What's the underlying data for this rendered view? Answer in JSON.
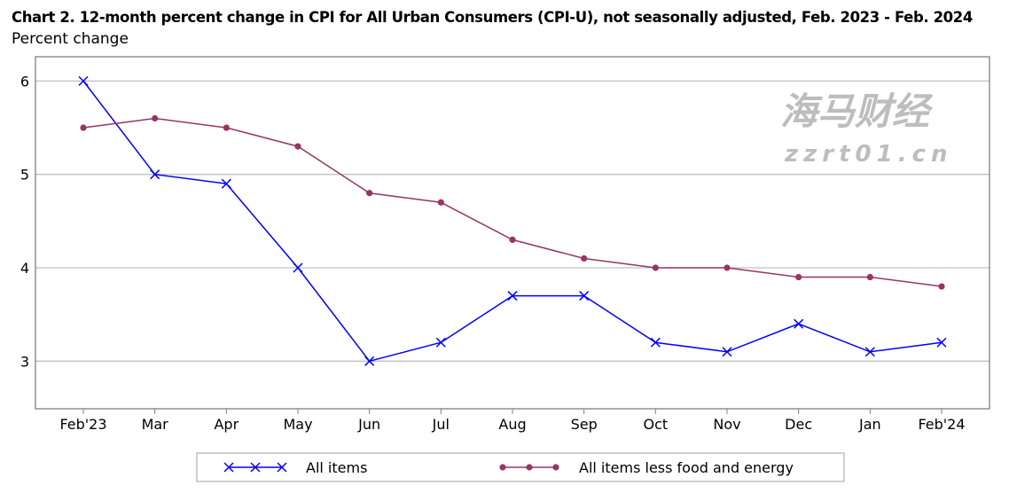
{
  "chart_data": {
    "type": "line",
    "title": "Chart 2. 12-month percent change in CPI for All Urban Consumers (CPI-U), not seasonally adjusted, Feb. 2023 - Feb. 2024",
    "ylabel": "Percent change",
    "xlabel": "",
    "categories": [
      "Feb'23",
      "Mar",
      "Apr",
      "May",
      "Jun",
      "Jul",
      "Aug",
      "Sep",
      "Oct",
      "Nov",
      "Dec",
      "Jan",
      "Feb'24"
    ],
    "yticks": [
      3,
      4,
      5,
      6
    ],
    "ylim": [
      2.49,
      6.26
    ],
    "grid": true,
    "legend": "bottom",
    "series": [
      {
        "name": "All items",
        "values": [
          6.0,
          5.0,
          4.9,
          4.0,
          3.0,
          3.2,
          3.7,
          3.7,
          3.2,
          3.1,
          3.4,
          3.1,
          3.2
        ],
        "color": "#0000ff",
        "marker": "x"
      },
      {
        "name": "All items less food and energy",
        "values": [
          5.5,
          5.6,
          5.5,
          5.3,
          4.8,
          4.7,
          4.3,
          4.1,
          4.0,
          4.0,
          3.9,
          3.9,
          3.8
        ],
        "color": "#993366",
        "marker": "circle"
      }
    ]
  },
  "watermark": {
    "line1": "海马财经",
    "line2": "zzrt01.cn"
  }
}
